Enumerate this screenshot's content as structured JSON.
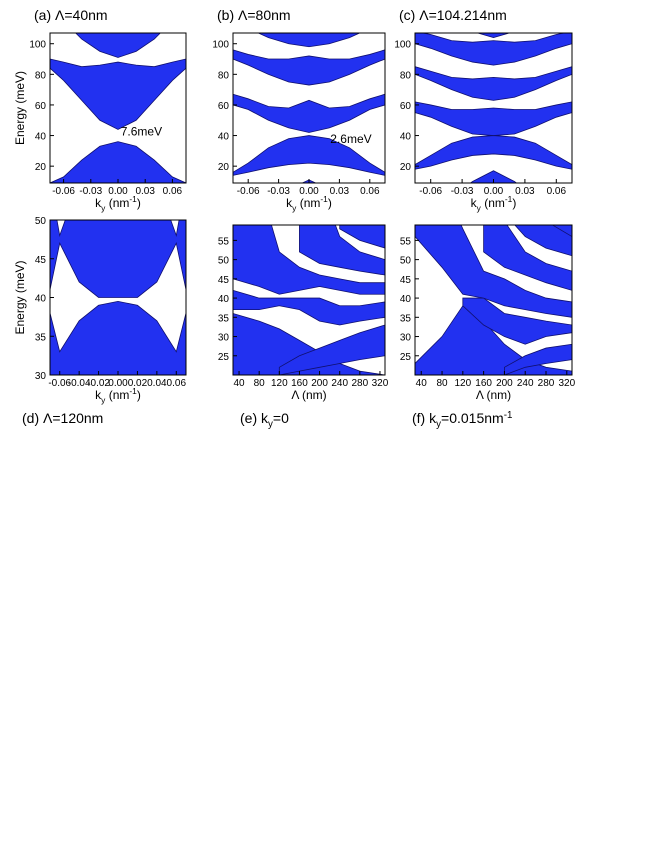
{
  "chart_data": [
    {
      "type": "area",
      "label": "(a) Λ=40nm",
      "label_position": "top",
      "ylabel": "Energy (meV)",
      "xlabel": [
        "k",
        "y",
        " (nm",
        "-1",
        ")"
      ],
      "color": "#2231f0",
      "edge_color": "#101070",
      "xlim": [
        -0.075,
        0.075
      ],
      "ylim": [
        9,
        107
      ],
      "xticks": [
        -0.06,
        -0.03,
        {
          "value": 0,
          "label": "0.00"
        },
        0.03,
        0.06
      ],
      "yticks": [
        20,
        40,
        60,
        80,
        100
      ],
      "annotation": {
        "text": "7.6meV",
        "x": 0.003,
        "y": 40
      },
      "bands": [
        {
          "x": [
            -0.075,
            -0.06,
            -0.04,
            -0.02,
            0,
            0.02,
            0.04,
            0.06,
            0.075
          ],
          "lower": [
            0,
            0,
            0,
            0,
            0,
            0,
            0,
            0,
            0
          ],
          "upper": [
            9,
            13,
            24,
            33,
            36,
            33,
            24,
            13,
            9
          ]
        },
        {
          "x": [
            -0.075,
            -0.06,
            -0.04,
            -0.02,
            0,
            0.02,
            0.04,
            0.06,
            0.075
          ],
          "lower": [
            84,
            76,
            63,
            50,
            44,
            50,
            63,
            76,
            84
          ],
          "upper": [
            90,
            88,
            85,
            86,
            88,
            86,
            85,
            88,
            90
          ]
        },
        {
          "x": [
            -0.075,
            -0.06,
            -0.04,
            -0.02,
            0,
            0.02,
            0.04,
            0.06,
            0.075
          ],
          "lower": [
            125,
            115,
            103,
            95,
            91,
            95,
            103,
            115,
            125
          ],
          "upper": [
            140,
            140,
            140,
            140,
            140,
            140,
            140,
            140,
            140
          ]
        }
      ]
    },
    {
      "type": "area",
      "label": "(b) Λ=80nm",
      "label_position": "top",
      "xlabel": [
        "k",
        "y",
        " (nm",
        "-1",
        ")"
      ],
      "color": "#2231f0",
      "edge_color": "#101070",
      "xlim": [
        -0.075,
        0.075
      ],
      "ylim": [
        9,
        107
      ],
      "xticks": [
        -0.06,
        -0.03,
        {
          "value": 0,
          "label": "0.00"
        },
        0.03,
        0.06
      ],
      "yticks": [
        20,
        40,
        60,
        80,
        100
      ],
      "annotation": {
        "text": "2.6meV",
        "x": 0.021,
        "y": 35
      },
      "bands": [
        {
          "x": [
            -0.075,
            -0.06,
            -0.04,
            -0.02,
            0,
            0.02,
            0.04,
            0.06,
            0.075
          ],
          "lower": [
            0,
            0,
            0,
            0,
            0,
            0,
            0,
            0,
            0
          ],
          "upper": [
            0,
            0,
            0,
            5,
            11,
            5,
            0,
            0,
            0
          ]
        },
        {
          "x": [
            -0.075,
            -0.06,
            -0.04,
            -0.02,
            0,
            0.02,
            0.04,
            0.06,
            0.075
          ],
          "lower": [
            14,
            16,
            19,
            21,
            22,
            21,
            19,
            16,
            14
          ],
          "upper": [
            16,
            22,
            32,
            38,
            40,
            38,
            32,
            22,
            16
          ]
        },
        {
          "x": [
            -0.075,
            -0.06,
            -0.04,
            -0.02,
            0,
            0.02,
            0.04,
            0.06,
            0.075
          ],
          "lower": [
            60,
            57,
            50,
            45,
            42,
            45,
            50,
            57,
            60
          ],
          "upper": [
            67,
            64,
            59,
            58,
            63,
            58,
            59,
            64,
            67
          ]
        },
        {
          "x": [
            -0.075,
            -0.06,
            -0.04,
            -0.02,
            0,
            0.02,
            0.04,
            0.06,
            0.075
          ],
          "lower": [
            90,
            86,
            80,
            75,
            73,
            75,
            80,
            86,
            90
          ],
          "upper": [
            96,
            93,
            90,
            90,
            92,
            90,
            90,
            93,
            96
          ]
        },
        {
          "x": [
            -0.075,
            -0.06,
            -0.04,
            -0.02,
            0,
            0.02,
            0.04,
            0.06,
            0.075
          ],
          "lower": [
            115,
            110,
            104,
            100,
            98,
            100,
            104,
            110,
            115
          ],
          "upper": [
            130,
            130,
            130,
            130,
            130,
            130,
            130,
            130,
            130
          ]
        }
      ]
    },
    {
      "type": "area",
      "label": "(c) Λ=104.214nm",
      "label_position": "top",
      "xlabel": [
        "k",
        "y",
        " (nm",
        "-1",
        ")"
      ],
      "color": "#2231f0",
      "edge_color": "#101070",
      "xlim": [
        -0.075,
        0.075
      ],
      "ylim": [
        9,
        107
      ],
      "xticks": [
        -0.06,
        -0.03,
        {
          "value": 0,
          "label": "0.00"
        },
        0.03,
        0.06
      ],
      "yticks": [
        20,
        40,
        60,
        80,
        100
      ],
      "bands": [
        {
          "x": [
            -0.075,
            -0.06,
            -0.04,
            -0.02,
            0,
            0.02,
            0.04,
            0.06,
            0.075
          ],
          "lower": [
            0,
            0,
            0,
            0,
            0,
            0,
            0,
            0,
            0
          ],
          "upper": [
            0,
            0,
            0,
            10,
            17,
            10,
            0,
            0,
            0
          ]
        },
        {
          "x": [
            -0.075,
            -0.06,
            -0.04,
            -0.02,
            0,
            0.02,
            0.04,
            0.06,
            0.075
          ],
          "lower": [
            18,
            20,
            24,
            27,
            28,
            27,
            24,
            20,
            18
          ],
          "upper": [
            21,
            27,
            35,
            39,
            40,
            39,
            35,
            27,
            21
          ]
        },
        {
          "x": [
            -0.075,
            -0.06,
            -0.04,
            -0.02,
            0,
            0.02,
            0.04,
            0.06,
            0.075
          ],
          "lower": [
            55,
            52,
            46,
            41,
            40,
            41,
            46,
            52,
            55
          ],
          "upper": [
            62,
            60,
            57,
            57,
            58,
            57,
            57,
            60,
            62
          ]
        },
        {
          "x": [
            -0.075,
            -0.06,
            -0.04,
            -0.02,
            0,
            0.02,
            0.04,
            0.06,
            0.075
          ],
          "lower": [
            80,
            76,
            70,
            65,
            63,
            65,
            70,
            76,
            80
          ],
          "upper": [
            85,
            82,
            78,
            77,
            78,
            77,
            78,
            82,
            85
          ]
        },
        {
          "x": [
            -0.075,
            -0.06,
            -0.04,
            -0.02,
            0,
            0.02,
            0.04,
            0.06,
            0.075
          ],
          "lower": [
            100,
            97,
            92,
            88,
            86,
            88,
            92,
            97,
            100
          ],
          "upper": [
            108,
            106,
            102,
            101,
            102,
            101,
            102,
            106,
            108
          ]
        },
        {
          "x": [
            -0.075,
            -0.06,
            -0.04,
            -0.02,
            0,
            0.02,
            0.04,
            0.06,
            0.075
          ],
          "lower": [
            120,
            118,
            113,
            108,
            104,
            108,
            113,
            118,
            120
          ],
          "upper": [
            130,
            130,
            130,
            130,
            130,
            130,
            130,
            130,
            130
          ]
        }
      ]
    },
    {
      "type": "area",
      "label": "(d) Λ=120nm",
      "label_position": "bottom",
      "ylabel": "Energy (meV)",
      "xlabel": [
        "k",
        "y",
        " (nm",
        "-1",
        ")"
      ],
      "color": "#2231f0",
      "edge_color": "#101070",
      "xlim": [
        -0.07,
        0.07
      ],
      "ylim": [
        30,
        50
      ],
      "xticks": [
        -0.06,
        -0.04,
        -0.02,
        {
          "value": 0,
          "label": "0.00"
        },
        0.02,
        0.04,
        0.06
      ],
      "yticks": [
        30,
        35,
        40,
        45,
        50
      ],
      "bands": [
        {
          "x": [
            -0.07,
            -0.06,
            -0.04,
            -0.02,
            0,
            0.02,
            0.04,
            0.06,
            0.07
          ],
          "lower": [
            20,
            20,
            20,
            20,
            20,
            20,
            20,
            20,
            20
          ],
          "upper": [
            38,
            33,
            37,
            39,
            39.5,
            39,
            37,
            33,
            38
          ]
        },
        {
          "x": [
            -0.07,
            -0.06,
            -0.04,
            -0.02,
            0,
            0.02,
            0.04,
            0.06,
            0.07
          ],
          "lower": [
            41,
            47,
            42,
            40,
            40,
            40,
            42,
            47,
            41
          ],
          "upper": [
            55,
            48,
            55,
            55,
            55,
            55,
            55,
            48,
            55
          ]
        }
      ]
    },
    {
      "type": "area",
      "label": [
        "(e) k",
        "y",
        "=0"
      ],
      "label_position": "bottom",
      "xlabel": "Λ (nm)",
      "color": "#2231f0",
      "edge_color": "#101070",
      "xlim": [
        28,
        330
      ],
      "ylim": [
        20,
        59
      ],
      "xticks": [
        40,
        80,
        120,
        160,
        200,
        240,
        280,
        320
      ],
      "yticks": [
        25,
        30,
        35,
        40,
        45,
        50,
        55
      ],
      "bands": [
        {
          "x": [
            28,
            80,
            120,
            160,
            200,
            240,
            280,
            330
          ],
          "lower": [
            0,
            0,
            0,
            0,
            0,
            0,
            0,
            0
          ],
          "upper": [
            36,
            34,
            32,
            29,
            26,
            23,
            21,
            20
          ]
        },
        {
          "x": [
            120,
            160,
            200,
            240,
            280,
            330
          ],
          "lower": [
            20,
            21,
            22,
            23,
            24,
            25
          ],
          "upper": [
            22,
            25,
            27,
            29,
            31,
            33
          ]
        },
        {
          "x": [
            28,
            80,
            120,
            160,
            200,
            240,
            280,
            330
          ],
          "lower": [
            37,
            37,
            38,
            37,
            34,
            33,
            34,
            35
          ],
          "upper": [
            42,
            40,
            40,
            40,
            40,
            38,
            38,
            39
          ]
        },
        {
          "x": [
            28,
            80,
            120,
            160,
            200,
            240,
            280,
            330
          ],
          "lower": [
            45,
            43,
            41,
            42,
            43,
            42,
            41,
            41
          ],
          "upper": [
            70,
            70,
            52,
            48,
            46,
            45,
            44,
            44
          ]
        },
        {
          "x": [
            160,
            200,
            240,
            280,
            330
          ],
          "lower": [
            52,
            49,
            48,
            47,
            46
          ],
          "upper": [
            70,
            70,
            56,
            52,
            50
          ]
        },
        {
          "x": [
            240,
            280,
            330
          ],
          "lower": [
            58,
            55,
            53
          ],
          "upper": [
            70,
            70,
            70
          ]
        }
      ]
    },
    {
      "type": "area",
      "label": [
        "(f) k",
        "y",
        "=0.015nm",
        "-1"
      ],
      "label_position": "bottom",
      "xlabel": "Λ (nm)",
      "color": "#2231f0",
      "edge_color": "#101070",
      "xlim": [
        28,
        330
      ],
      "ylim": [
        20,
        59
      ],
      "xticks": [
        40,
        80,
        120,
        160,
        200,
        240,
        280,
        320
      ],
      "yticks": [
        25,
        30,
        35,
        40,
        45,
        50,
        55
      ],
      "bands": [
        {
          "x": [
            28,
            80,
            120,
            160,
            200,
            240,
            280,
            330
          ],
          "lower": [
            0,
            0,
            0,
            0,
            0,
            0,
            0,
            0
          ],
          "upper": [
            23,
            30,
            38,
            34,
            28,
            24,
            22,
            21
          ]
        },
        {
          "x": [
            200,
            240,
            280,
            330
          ],
          "lower": [
            20,
            22,
            23,
            24
          ],
          "upper": [
            22,
            25,
            27,
            28
          ]
        },
        {
          "x": [
            120,
            160,
            200,
            240,
            280,
            330
          ],
          "lower": [
            38,
            33,
            30,
            28,
            30,
            31
          ],
          "upper": [
            40,
            40,
            36,
            35,
            34,
            33
          ]
        },
        {
          "x": [
            28,
            80,
            120,
            160,
            200,
            240,
            280,
            330
          ],
          "lower": [
            56,
            48,
            41,
            40,
            38,
            37,
            36,
            35
          ],
          "upper": [
            70,
            70,
            58,
            47,
            45,
            42,
            40,
            39
          ]
        },
        {
          "x": [
            160,
            200,
            240,
            280,
            330
          ],
          "lower": [
            52,
            48,
            46,
            44,
            42
          ],
          "upper": [
            70,
            60,
            52,
            49,
            47
          ]
        },
        {
          "x": [
            200,
            240,
            280,
            330
          ],
          "lower": [
            62,
            56,
            53,
            51
          ],
          "upper": [
            70,
            70,
            62,
            56
          ]
        },
        {
          "x": [
            280,
            330
          ],
          "lower": [
            60,
            56
          ],
          "upper": [
            70,
            70
          ]
        }
      ]
    }
  ]
}
